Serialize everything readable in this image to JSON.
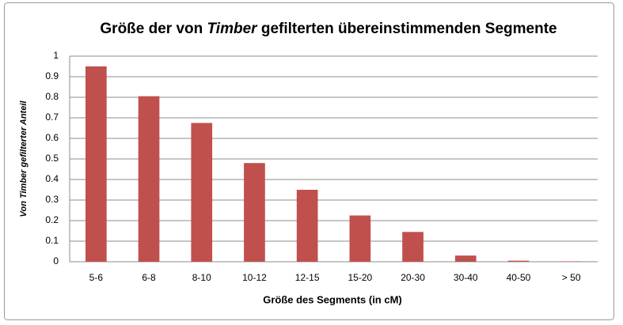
{
  "chart_data": {
    "type": "bar",
    "title": [
      "Größe der von ",
      "Timber",
      " gefilterten übereinstimmenden Segmente"
    ],
    "xlabel": "Größe des Segments (in cM)",
    "ylabel": "Von Timber gefilterter Anteil",
    "categories": [
      "5-6",
      "6-8",
      "8-10",
      "10-12",
      "12-15",
      "15-20",
      "20-30",
      "30-40",
      "40-50",
      "> 50"
    ],
    "values": [
      0.95,
      0.805,
      0.675,
      0.48,
      0.35,
      0.225,
      0.145,
      0.03,
      0.005,
      0.002
    ],
    "color": "#c0504d",
    "ylim": [
      0,
      1
    ],
    "yticks": [
      0,
      0.1,
      0.2,
      0.3,
      0.4,
      0.5,
      0.6,
      0.7,
      0.8,
      0.9,
      1
    ],
    "grid": true
  }
}
